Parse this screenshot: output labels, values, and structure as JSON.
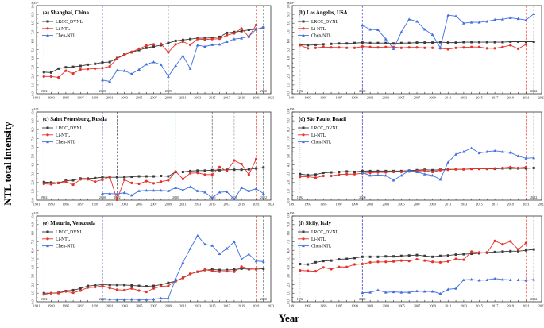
{
  "figure": {
    "ylabel": "NTL total intensity",
    "xlabel": "Year"
  },
  "axes": {
    "x_range": [
      1991,
      2023
    ],
    "y_range": [
      0,
      10
    ],
    "xticks": [
      1991,
      1993,
      1995,
      1997,
      1999,
      2001,
      2003,
      2005,
      2007,
      2009,
      2011,
      2013,
      2015,
      2017,
      2019,
      2021,
      2023
    ],
    "ytick_labels": [
      "0.0",
      "1.0",
      "2.0",
      "3.0",
      "4.0",
      "5.0",
      "6.0",
      "7.0",
      "8.0",
      "9.0",
      "10.0"
    ],
    "exponent": "×10⁵",
    "grid": false,
    "legend_position": "upper-left"
  },
  "series_styles": [
    {
      "name": "LRCC_DVNL",
      "color": "#3a3a3a",
      "marker": "square"
    },
    {
      "name": "Li-NTL",
      "color": "#e63229",
      "marker": "circle"
    },
    {
      "name": "Chen-NTL",
      "color": "#3f6fe0",
      "marker": "triangle"
    }
  ],
  "chart_data": [
    {
      "type": "line",
      "title": "(a) Shanghai, China",
      "xlabel": "",
      "ylabel": "",
      "xlim": [
        1991,
        2023
      ],
      "ylim": [
        0,
        10
      ],
      "series": [
        {
          "name": "LRCC_DVNL",
          "start_year": 1992,
          "values": [
            2.45,
            2.4,
            2.85,
            3.0,
            3.05,
            3.15,
            3.3,
            3.4,
            3.55,
            3.6,
            4.05,
            4.45,
            4.7,
            4.95,
            5.2,
            5.35,
            5.5,
            5.75,
            6.0,
            6.1,
            6.2,
            6.3,
            6.3,
            6.35,
            6.45,
            6.9,
            7.0,
            7.1,
            7.25,
            7.3,
            7.5
          ]
        },
        {
          "name": "Li-NTL",
          "start_year": 1992,
          "values": [
            1.95,
            1.95,
            1.85,
            2.6,
            2.3,
            2.75,
            2.8,
            2.85,
            2.9,
            3.1,
            4.0,
            4.4,
            4.75,
            5.1,
            5.45,
            5.6,
            5.65,
            4.7,
            5.6,
            5.9,
            5.55,
            6.2,
            6.15,
            6.2,
            6.25,
            6.65,
            6.85,
            7.4,
            6.45,
            7.8
          ]
        },
        {
          "name": "Chen-NTL",
          "start_year": 2000,
          "values": [
            1.55,
            1.4,
            2.65,
            2.6,
            2.25,
            2.75,
            3.35,
            3.6,
            3.3,
            1.95,
            3.2,
            4.3,
            2.85,
            5.5,
            5.35,
            5.55,
            5.6,
            5.9,
            6.2,
            6.3,
            6.5,
            7.3,
            7.55
          ]
        }
      ],
      "vlines": [
        {
          "year": 1992,
          "color": "#b5b5b5",
          "style": "dotted",
          "label": "1992"
        },
        {
          "year": 2000,
          "color": "#3b3bd0",
          "style": "dashed",
          "label": "2000"
        },
        {
          "year": 2009,
          "color": "#6a6a6a",
          "style": "dashed",
          "label": "2009"
        },
        {
          "year": 2021,
          "color": "#f15a52",
          "style": "dashed",
          "label": ""
        },
        {
          "year": 2022,
          "color": "#5a5a5a",
          "style": "dashed",
          "label": "2022"
        }
      ]
    },
    {
      "type": "line",
      "title": "(b) Los Angeles, USA",
      "xlabel": "",
      "ylabel": "",
      "xlim": [
        1991,
        2023
      ],
      "ylim": [
        0,
        10
      ],
      "series": [
        {
          "name": "LRCC_DVNL",
          "start_year": 1992,
          "values": [
            5.55,
            5.5,
            5.55,
            5.6,
            5.65,
            5.7,
            5.7,
            5.75,
            5.8,
            5.75,
            5.75,
            5.75,
            5.7,
            5.75,
            5.75,
            5.8,
            5.8,
            5.8,
            5.85,
            5.8,
            5.8,
            5.85,
            5.85,
            5.85,
            5.85,
            5.85,
            5.85,
            5.9,
            5.9,
            5.9,
            5.9
          ]
        },
        {
          "name": "Li-NTL",
          "start_year": 1992,
          "values": [
            5.5,
            5.15,
            5.2,
            5.3,
            5.25,
            5.25,
            5.2,
            5.2,
            5.35,
            5.3,
            5.25,
            5.3,
            5.3,
            5.2,
            5.25,
            5.25,
            5.2,
            5.2,
            5.15,
            5.05,
            5.2,
            5.25,
            5.3,
            5.3,
            5.15,
            5.15,
            5.3,
            5.5,
            5.1,
            5.6
          ]
        },
        {
          "name": "Chen-NTL",
          "start_year": 2000,
          "values": [
            7.75,
            7.3,
            7.25,
            6.2,
            5.1,
            7.0,
            8.45,
            8.2,
            7.3,
            6.7,
            5.2,
            8.9,
            8.8,
            8.0,
            8.1,
            8.1,
            8.2,
            8.4,
            8.45,
            8.6,
            8.5,
            8.35,
            9.05
          ]
        }
      ],
      "vlines": [
        {
          "year": 1992,
          "color": "#b5b5b5",
          "style": "dotted",
          "label": "1992"
        },
        {
          "year": 2000,
          "color": "#3b3bd0",
          "style": "dashed",
          "label": "2000"
        },
        {
          "year": 2021,
          "color": "#f15a52",
          "style": "dashed",
          "label": ""
        },
        {
          "year": 2022,
          "color": "#5a5a5a",
          "style": "dashed",
          "label": "2022"
        }
      ]
    },
    {
      "type": "line",
      "title": "(c) Saint Petersburg, Russia",
      "xlabel": "",
      "ylabel": "",
      "xlim": [
        1991,
        2023
      ],
      "ylim": [
        0,
        10
      ],
      "series": [
        {
          "name": "LRCC_DVNL",
          "start_year": 1992,
          "values": [
            2.05,
            2.0,
            1.95,
            2.2,
            2.25,
            2.45,
            2.45,
            2.5,
            2.6,
            2.6,
            2.6,
            2.6,
            2.65,
            2.7,
            2.7,
            2.7,
            2.75,
            2.7,
            3.2,
            3.2,
            3.3,
            3.35,
            3.35,
            3.4,
            3.4,
            3.45,
            3.45,
            3.45,
            3.5,
            3.6,
            3.7
          ]
        },
        {
          "name": "Li-NTL",
          "start_year": 1992,
          "values": [
            1.85,
            1.8,
            1.95,
            2.1,
            1.75,
            2.35,
            2.35,
            2.1,
            2.3,
            2.65,
            0.05,
            2.3,
            1.95,
            1.85,
            2.15,
            1.9,
            2.1,
            2.25,
            3.25,
            2.4,
            3.05,
            3.1,
            2.9,
            2.9,
            3.75,
            3.3,
            4.5,
            4.1,
            2.9,
            4.65
          ]
        },
        {
          "name": "Chen-NTL",
          "start_year": 2000,
          "values": [
            0.75,
            0.75,
            0.7,
            0.85,
            0.55,
            1.05,
            1.1,
            1.1,
            1.1,
            1.05,
            1.4,
            1.15,
            1.5,
            1.05,
            0.9,
            0.25,
            0.9,
            0.95,
            0.1,
            1.4,
            1.05,
            1.3,
            0.75
          ]
        }
      ],
      "vlines": [
        {
          "year": 1992,
          "color": "#b5b5b5",
          "style": "dotted",
          "label": "1992"
        },
        {
          "year": 2000,
          "color": "#3b3bd0",
          "style": "dashed",
          "label": "2000"
        },
        {
          "year": 2002,
          "color": "#5a5a5a",
          "style": "dashed",
          "label": "2002"
        },
        {
          "year": 2010,
          "color": "#8ce8b4",
          "style": "dashed",
          "label": "2010"
        },
        {
          "year": 2015,
          "color": "#6a6a6a",
          "style": "dashed",
          "label": "2015"
        },
        {
          "year": 2018,
          "color": "#a8a8a8",
          "style": "dashed",
          "label": "2018"
        },
        {
          "year": 2021,
          "color": "#f15a52",
          "style": "dashed",
          "label": ""
        },
        {
          "year": 2022,
          "color": "#5a5a5a",
          "style": "dashed",
          "label": "2022"
        }
      ]
    },
    {
      "type": "line",
      "title": "(d) São Paulo,  Brazil",
      "xlabel": "",
      "ylabel": "",
      "xlim": [
        1991,
        2023
      ],
      "ylim": [
        0,
        10
      ],
      "series": [
        {
          "name": "LRCC_DVNL",
          "start_year": 1992,
          "values": [
            2.95,
            2.85,
            2.9,
            3.1,
            3.15,
            3.2,
            3.25,
            3.2,
            3.3,
            3.3,
            3.3,
            3.3,
            3.3,
            3.3,
            3.35,
            3.4,
            3.45,
            3.4,
            3.45,
            3.5,
            3.5,
            3.5,
            3.55,
            3.55,
            3.55,
            3.55,
            3.6,
            3.6,
            3.6,
            3.6,
            3.65
          ]
        },
        {
          "name": "Li-NTL",
          "start_year": 1992,
          "values": [
            2.65,
            2.65,
            2.55,
            2.75,
            2.75,
            2.9,
            2.95,
            2.95,
            3.05,
            3.1,
            3.15,
            3.15,
            3.2,
            3.2,
            3.25,
            3.3,
            3.35,
            3.2,
            3.4,
            3.45,
            3.5,
            3.5,
            3.55,
            3.55,
            3.55,
            3.6,
            3.65,
            3.75,
            3.65,
            3.75
          ]
        },
        {
          "name": "Chen-NTL",
          "start_year": 2000,
          "values": [
            3.1,
            2.8,
            2.85,
            2.8,
            2.25,
            2.8,
            3.35,
            3.2,
            2.95,
            2.8,
            2.35,
            4.3,
            5.2,
            5.5,
            5.9,
            5.35,
            5.5,
            5.6,
            5.5,
            5.4,
            5.0,
            4.75,
            4.8
          ]
        }
      ],
      "vlines": [
        {
          "year": 1992,
          "color": "#b5b5b5",
          "style": "dotted",
          "label": "1992"
        },
        {
          "year": 2000,
          "color": "#3b3bd0",
          "style": "dashed",
          "label": "2000"
        },
        {
          "year": 2021,
          "color": "#f15a52",
          "style": "dashed",
          "label": ""
        },
        {
          "year": 2022,
          "color": "#5a5a5a",
          "style": "dashed",
          "label": "2022"
        }
      ]
    },
    {
      "type": "line",
      "title": "(e) Maturin, Venezuela",
      "xlabel": "",
      "ylabel": "",
      "xlim": [
        1991,
        2023
      ],
      "ylim": [
        0,
        10
      ],
      "series": [
        {
          "name": "LRCC_DVNL",
          "start_year": 1992,
          "values": [
            1.0,
            1.0,
            1.05,
            1.25,
            1.35,
            1.55,
            1.85,
            1.9,
            2.0,
            1.95,
            1.95,
            1.95,
            1.9,
            1.85,
            1.8,
            1.85,
            2.0,
            2.2,
            2.4,
            2.8,
            3.25,
            3.5,
            3.7,
            3.75,
            3.7,
            3.7,
            3.75,
            3.85,
            3.8,
            3.8,
            3.85
          ]
        },
        {
          "name": "Li-NTL",
          "start_year": 1992,
          "values": [
            0.85,
            1.0,
            1.0,
            1.2,
            1.05,
            1.3,
            1.65,
            1.7,
            1.85,
            1.6,
            1.4,
            1.35,
            1.55,
            1.3,
            1.15,
            1.55,
            1.8,
            1.85,
            2.45,
            2.75,
            3.25,
            3.5,
            3.75,
            3.6,
            3.5,
            3.55,
            3.5,
            4.1,
            3.85,
            3.8
          ]
        },
        {
          "name": "Chen-NTL",
          "start_year": 2000,
          "values": [
            0.3,
            0.3,
            0.25,
            0.25,
            0.3,
            0.25,
            0.25,
            0.3,
            0.4,
            0.4,
            2.7,
            4.6,
            6.2,
            7.7,
            6.7,
            6.55,
            5.6,
            6.2,
            7.0,
            4.95,
            5.55,
            4.75,
            4.7
          ]
        }
      ],
      "vlines": [
        {
          "year": 1992,
          "color": "#b5b5b5",
          "style": "dotted",
          "label": "1992"
        },
        {
          "year": 2000,
          "color": "#3b3bd0",
          "style": "dashed",
          "label": "2000"
        },
        {
          "year": 2021,
          "color": "#f15a52",
          "style": "dashed",
          "label": ""
        },
        {
          "year": 2022,
          "color": "#5a5a5a",
          "style": "dashed",
          "label": "2022"
        }
      ]
    },
    {
      "type": "line",
      "title": "(f) Sicily, Italy",
      "xlabel": "",
      "ylabel": "",
      "xlim": [
        1991,
        2023
      ],
      "ylim": [
        0,
        10
      ],
      "series": [
        {
          "name": "LRCC_DVNL",
          "start_year": 1992,
          "values": [
            4.4,
            4.35,
            4.6,
            4.75,
            4.8,
            4.95,
            5.0,
            5.1,
            5.25,
            5.25,
            5.25,
            5.3,
            5.3,
            5.35,
            5.4,
            5.45,
            5.35,
            5.25,
            5.35,
            5.4,
            5.5,
            5.55,
            5.6,
            5.65,
            5.75,
            5.8,
            5.85,
            5.9,
            5.9,
            6.0,
            6.1
          ]
        },
        {
          "name": "Li-NTL",
          "start_year": 1992,
          "values": [
            3.65,
            3.6,
            3.55,
            4.0,
            3.8,
            4.05,
            4.05,
            4.35,
            4.4,
            4.6,
            4.65,
            4.65,
            4.7,
            4.8,
            4.75,
            4.95,
            4.8,
            4.65,
            4.6,
            4.7,
            5.0,
            4.9,
            5.85,
            5.75,
            5.7,
            7.1,
            6.7,
            7.05,
            6.1,
            6.85
          ]
        },
        {
          "name": "Chen-NTL",
          "start_year": 2000,
          "values": [
            1.05,
            1.1,
            1.35,
            1.1,
            1.15,
            1.1,
            1.1,
            1.25,
            1.2,
            1.2,
            0.95,
            1.45,
            1.55,
            2.55,
            2.6,
            2.5,
            2.55,
            2.7,
            2.6,
            2.55,
            2.55,
            2.5,
            2.6
          ]
        }
      ],
      "vlines": [
        {
          "year": 1992,
          "color": "#b5b5b5",
          "style": "dotted",
          "label": "1992"
        },
        {
          "year": 2000,
          "color": "#3b3bd0",
          "style": "dashed",
          "label": "2000"
        },
        {
          "year": 2021,
          "color": "#f15a52",
          "style": "dashed",
          "label": ""
        },
        {
          "year": 2022,
          "color": "#5a5a5a",
          "style": "dashed",
          "label": "2022"
        }
      ]
    }
  ]
}
